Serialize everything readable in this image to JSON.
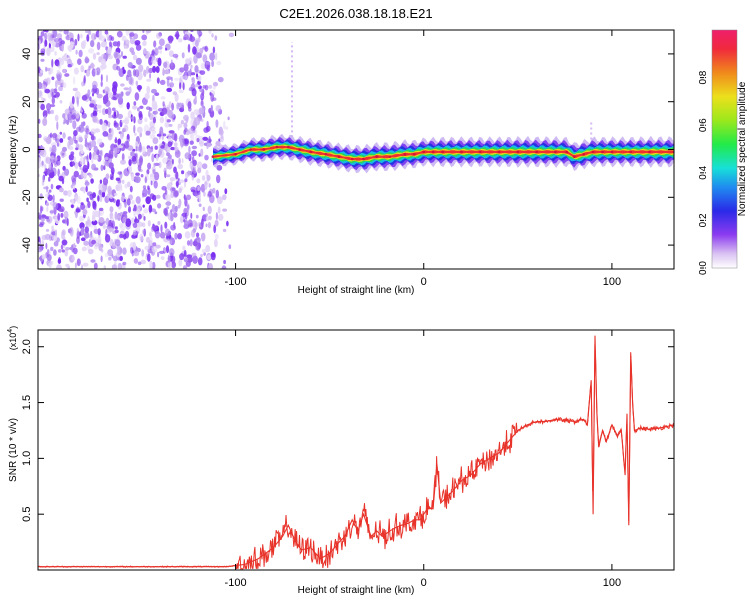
{
  "chart_data": [
    {
      "type": "heatmap",
      "title": "C2E1.2026.038.18.18.E21",
      "xlabel": "Height of straight line (km)",
      "ylabel": "Frequency (Hz)",
      "xlim": [
        -205,
        133
      ],
      "ylim": [
        -50,
        50
      ],
      "x_ticks": [
        -100,
        0,
        100
      ],
      "x_tick_labels": [
        "-100",
        "0",
        "100"
      ],
      "y_ticks": [
        -40,
        -20,
        0,
        20,
        40
      ],
      "y_tick_labels": [
        "-40",
        "-20",
        "0",
        "20",
        "40"
      ],
      "colorbar": {
        "label": "Normalized spectral amplitude",
        "range": [
          0,
          1
        ],
        "ticks": [
          0.0,
          0.2,
          0.4,
          0.6,
          0.8
        ],
        "tick_labels": [
          "0.0",
          "0.2",
          "0.4",
          "0.6",
          "0.8"
        ]
      },
      "noise_region_x": [
        -205,
        -102
      ],
      "ridge": {
        "x": [
          -112,
          -100,
          -92,
          -85,
          -78,
          -72,
          -66,
          -60,
          -52,
          -45,
          -38,
          -32,
          -25,
          -18,
          -10,
          -5,
          0,
          5,
          10,
          20,
          30,
          40,
          50,
          60,
          70,
          76,
          80,
          85,
          90,
          95,
          100,
          110,
          120,
          133
        ],
        "y": [
          -3,
          -2,
          0,
          0,
          1,
          1,
          0,
          -1,
          -2,
          -3,
          -4,
          -4,
          -3,
          -3,
          -2,
          -2,
          -1,
          -1,
          -1,
          -1,
          -1,
          -1,
          -1,
          -1,
          -1,
          -1,
          -3,
          -2,
          -1,
          -1,
          -1,
          -1,
          -1,
          -1
        ],
        "amplitude": [
          0.3,
          0.35,
          0.45,
          0.55,
          0.6,
          0.6,
          0.65,
          0.7,
          0.7,
          0.7,
          0.75,
          0.8,
          0.8,
          0.85,
          0.85,
          0.8,
          0.8,
          0.85,
          0.9,
          0.9,
          0.9,
          0.9,
          0.95,
          0.95,
          0.95,
          0.9,
          0.8,
          0.85,
          0.9,
          0.9,
          0.9,
          0.9,
          0.95,
          0.95
        ]
      },
      "spikes": [
        {
          "x": -70,
          "y_range": [
            3,
            45
          ]
        },
        {
          "x": 89,
          "y_range": [
            0,
            12
          ]
        }
      ]
    },
    {
      "type": "line",
      "xlabel": "Height of straight line (km)",
      "ylabel": "SNR (10 * v/v)",
      "scale_label": "(x10",
      "scale_exponent": "4",
      "xlim": [
        -205,
        133
      ],
      "ylim": [
        0,
        2.15
      ],
      "x_ticks": [
        -100,
        0,
        100
      ],
      "x_tick_labels": [
        "-100",
        "0",
        "100"
      ],
      "y_ticks": [
        0.5,
        1.0,
        1.5,
        2.0
      ],
      "y_tick_labels": [
        "0.5",
        "1.0",
        "1.5",
        "2.0"
      ],
      "series": [
        {
          "name": "SNR",
          "color": "#e8332a",
          "x": [
            -205,
            -150,
            -105,
            -95,
            -88,
            -80,
            -75,
            -72,
            -68,
            -65,
            -60,
            -55,
            -50,
            -45,
            -42,
            -38,
            -35,
            -32,
            -28,
            -25,
            -22,
            -18,
            -15,
            -12,
            -8,
            -5,
            -2,
            0,
            2,
            5,
            7,
            9,
            12,
            15,
            20,
            25,
            30,
            35,
            40,
            45,
            50,
            55,
            60,
            65,
            70,
            75,
            80,
            85,
            87,
            89,
            90,
            91,
            92,
            93,
            95,
            97,
            100,
            103,
            105,
            107,
            108,
            109,
            110,
            111,
            112,
            115,
            120,
            125,
            133
          ],
          "y": [
            0.03,
            0.03,
            0.03,
            0.05,
            0.1,
            0.2,
            0.3,
            0.4,
            0.25,
            0.18,
            0.2,
            0.1,
            0.15,
            0.25,
            0.3,
            0.45,
            0.35,
            0.5,
            0.3,
            0.35,
            0.3,
            0.35,
            0.38,
            0.4,
            0.42,
            0.45,
            0.45,
            0.5,
            0.55,
            0.55,
            0.95,
            0.6,
            0.65,
            0.7,
            0.8,
            0.85,
            0.95,
            1.0,
            1.05,
            1.15,
            1.25,
            1.3,
            1.33,
            1.33,
            1.35,
            1.34,
            1.33,
            1.35,
            1.3,
            1.7,
            0.5,
            2.1,
            1.4,
            1.1,
            1.25,
            1.15,
            1.3,
            1.2,
            1.25,
            0.85,
            1.4,
            0.4,
            1.95,
            1.5,
            1.25,
            1.27,
            1.26,
            1.27,
            1.3
          ]
        }
      ]
    }
  ]
}
